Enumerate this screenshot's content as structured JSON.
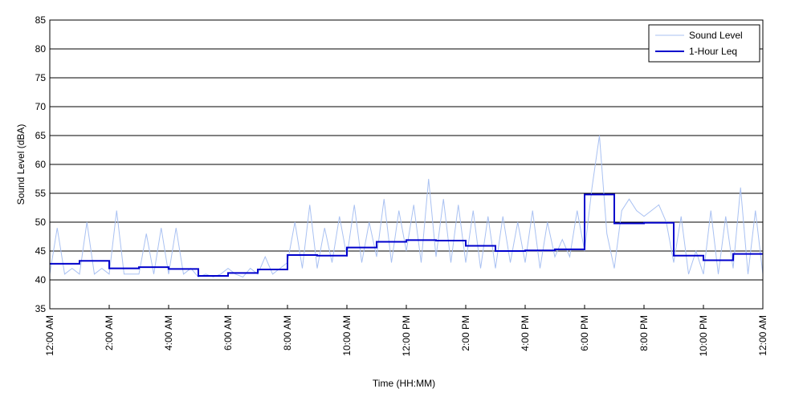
{
  "chart_data": {
    "type": "line",
    "xlabel": "Time (HH:MM)",
    "ylabel": "Sound Level (dBA)",
    "xlim": [
      0,
      24
    ],
    "ylim": [
      35,
      85
    ],
    "xticks": [
      {
        "value": 0,
        "label": "12:00 AM"
      },
      {
        "value": 2,
        "label": "2:00 AM"
      },
      {
        "value": 4,
        "label": "4:00 AM"
      },
      {
        "value": 6,
        "label": "6:00 AM"
      },
      {
        "value": 8,
        "label": "8:00 AM"
      },
      {
        "value": 10,
        "label": "10:00 AM"
      },
      {
        "value": 12,
        "label": "12:00 PM"
      },
      {
        "value": 14,
        "label": "2:00 PM"
      },
      {
        "value": 16,
        "label": "4:00 PM"
      },
      {
        "value": 18,
        "label": "6:00 PM"
      },
      {
        "value": 20,
        "label": "8:00 PM"
      },
      {
        "value": 22,
        "label": "10:00 PM"
      },
      {
        "value": 24,
        "label": "12:00 AM"
      }
    ],
    "yticks": [
      35,
      40,
      45,
      50,
      55,
      60,
      65,
      70,
      75,
      80,
      85
    ],
    "grid": true,
    "legend": "upper right",
    "series": [
      {
        "name": "Sound Level",
        "color": "#a9c1f2",
        "step": false,
        "x": [
          0,
          0.25,
          0.5,
          0.75,
          1,
          1.25,
          1.5,
          1.75,
          2,
          2.25,
          2.5,
          2.75,
          3,
          3.25,
          3.5,
          3.75,
          4,
          4.25,
          4.5,
          4.75,
          5,
          5.25,
          5.5,
          5.75,
          6,
          6.25,
          6.5,
          6.75,
          7,
          7.25,
          7.5,
          7.75,
          8,
          8.25,
          8.5,
          8.75,
          9,
          9.25,
          9.5,
          9.75,
          10,
          10.25,
          10.5,
          10.75,
          11,
          11.25,
          11.5,
          11.75,
          12,
          12.25,
          12.5,
          12.75,
          13,
          13.25,
          13.5,
          13.75,
          14,
          14.25,
          14.5,
          14.75,
          15,
          15.25,
          15.5,
          15.75,
          16,
          16.25,
          16.5,
          16.75,
          17,
          17.25,
          17.5,
          17.75,
          18,
          18.25,
          18.5,
          18.75,
          19,
          19.25,
          19.5,
          19.75,
          20,
          20.25,
          20.5,
          20.75,
          21,
          21.25,
          21.5,
          21.75,
          22,
          22.25,
          22.5,
          22.75,
          23,
          23.25,
          23.5,
          23.75,
          24
        ],
        "values": [
          41,
          49,
          41,
          42,
          41,
          50,
          41,
          42,
          41,
          52,
          41,
          41,
          41,
          48,
          41,
          49,
          41,
          49,
          41,
          42,
          40.5,
          41,
          40.5,
          41,
          42,
          41,
          40.5,
          42,
          41,
          44,
          41,
          42,
          43,
          50,
          42,
          53,
          42,
          49,
          43,
          51,
          44,
          53,
          43,
          50,
          44,
          54,
          43,
          52,
          45,
          53,
          43,
          57.5,
          44,
          54,
          43,
          53,
          43,
          52,
          42,
          51,
          42,
          51,
          43,
          50,
          43,
          52,
          42,
          50,
          44,
          47,
          44,
          52,
          45,
          56,
          65,
          48,
          42,
          52,
          54,
          52,
          51,
          52,
          53,
          50,
          43,
          51,
          41,
          45,
          41,
          52,
          41,
          51,
          42,
          56,
          41,
          52,
          41
        ]
      },
      {
        "name": "1-Hour Leq",
        "color": "#0000cc",
        "step": true,
        "x": [
          0,
          1,
          2,
          3,
          4,
          5,
          6,
          7,
          8,
          9,
          10,
          11,
          12,
          13,
          14,
          15,
          16,
          17,
          18,
          19,
          20,
          21,
          22,
          23
        ],
        "values": [
          42.8,
          43.3,
          42.0,
          42.2,
          41.9,
          40.7,
          41.2,
          41.8,
          44.3,
          44.2,
          45.6,
          46.6,
          46.9,
          46.8,
          45.9,
          45.0,
          45.1,
          45.3,
          54.8,
          49.8,
          49.9,
          44.2,
          43.4,
          44.5
        ]
      }
    ]
  }
}
